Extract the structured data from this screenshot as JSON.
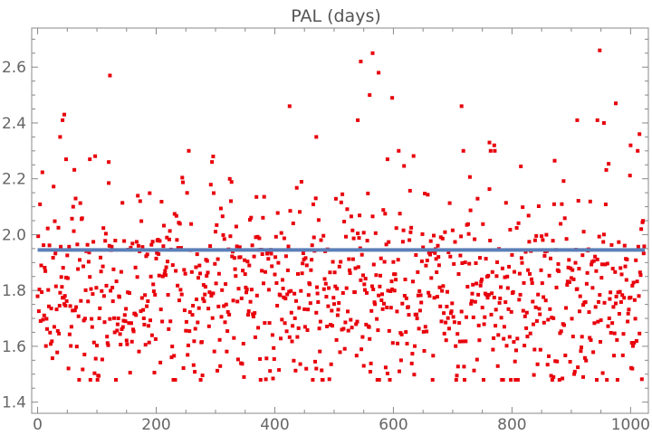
{
  "chart_data": {
    "type": "scatter",
    "title": "PAL (days)",
    "xlabel": "",
    "ylabel": "",
    "xlim": [
      -10,
      1030
    ],
    "ylim": [
      1.36,
      2.74
    ],
    "xticks": [
      0,
      200,
      400,
      600,
      800,
      1000
    ],
    "yticks": [
      1.4,
      1.6,
      1.8,
      2.0,
      2.2,
      2.4,
      2.6
    ],
    "ytick_labels": [
      "1.4",
      "1.6",
      "1.8",
      "2.0",
      "2.2",
      "2.4",
      "2.6"
    ],
    "grid": false,
    "frame": true,
    "series": [
      {
        "kind": "points",
        "color": "#e8000b",
        "count": 1024,
        "seed": 7,
        "distribution": {
          "center": 1.8,
          "min": 1.48,
          "max": 2.66
        },
        "outliers": [
          {
            "x": 38,
            "y": 2.35
          },
          {
            "x": 42,
            "y": 2.41
          },
          {
            "x": 45,
            "y": 2.43
          },
          {
            "x": 48,
            "y": 2.27
          },
          {
            "x": 88,
            "y": 2.27
          },
          {
            "x": 120,
            "y": 2.26
          },
          {
            "x": 122,
            "y": 2.57
          },
          {
            "x": 296,
            "y": 2.28
          },
          {
            "x": 425,
            "y": 2.46
          },
          {
            "x": 470,
            "y": 2.35
          },
          {
            "x": 540,
            "y": 2.41
          },
          {
            "x": 545,
            "y": 2.62
          },
          {
            "x": 560,
            "y": 2.5
          },
          {
            "x": 565,
            "y": 2.65
          },
          {
            "x": 575,
            "y": 2.58
          },
          {
            "x": 590,
            "y": 2.27
          },
          {
            "x": 598,
            "y": 2.49
          },
          {
            "x": 715,
            "y": 2.46
          },
          {
            "x": 762,
            "y": 2.33
          },
          {
            "x": 770,
            "y": 2.32
          },
          {
            "x": 910,
            "y": 2.41
          },
          {
            "x": 944,
            "y": 2.41
          },
          {
            "x": 948,
            "y": 2.66
          },
          {
            "x": 955,
            "y": 2.4
          },
          {
            "x": 975,
            "y": 2.47
          },
          {
            "x": 1000,
            "y": 2.32
          },
          {
            "x": 1015,
            "y": 2.36
          },
          {
            "x": 870,
            "y": 1.49
          },
          {
            "x": 920,
            "y": 1.49
          },
          {
            "x": 1003,
            "y": 1.52
          },
          {
            "x": 470,
            "y": 1.52
          },
          {
            "x": 550,
            "y": 1.53
          }
        ]
      },
      {
        "kind": "hline",
        "y": 1.945,
        "x_from": 0,
        "x_to": 1024,
        "color": "#5b7fb8"
      }
    ]
  }
}
